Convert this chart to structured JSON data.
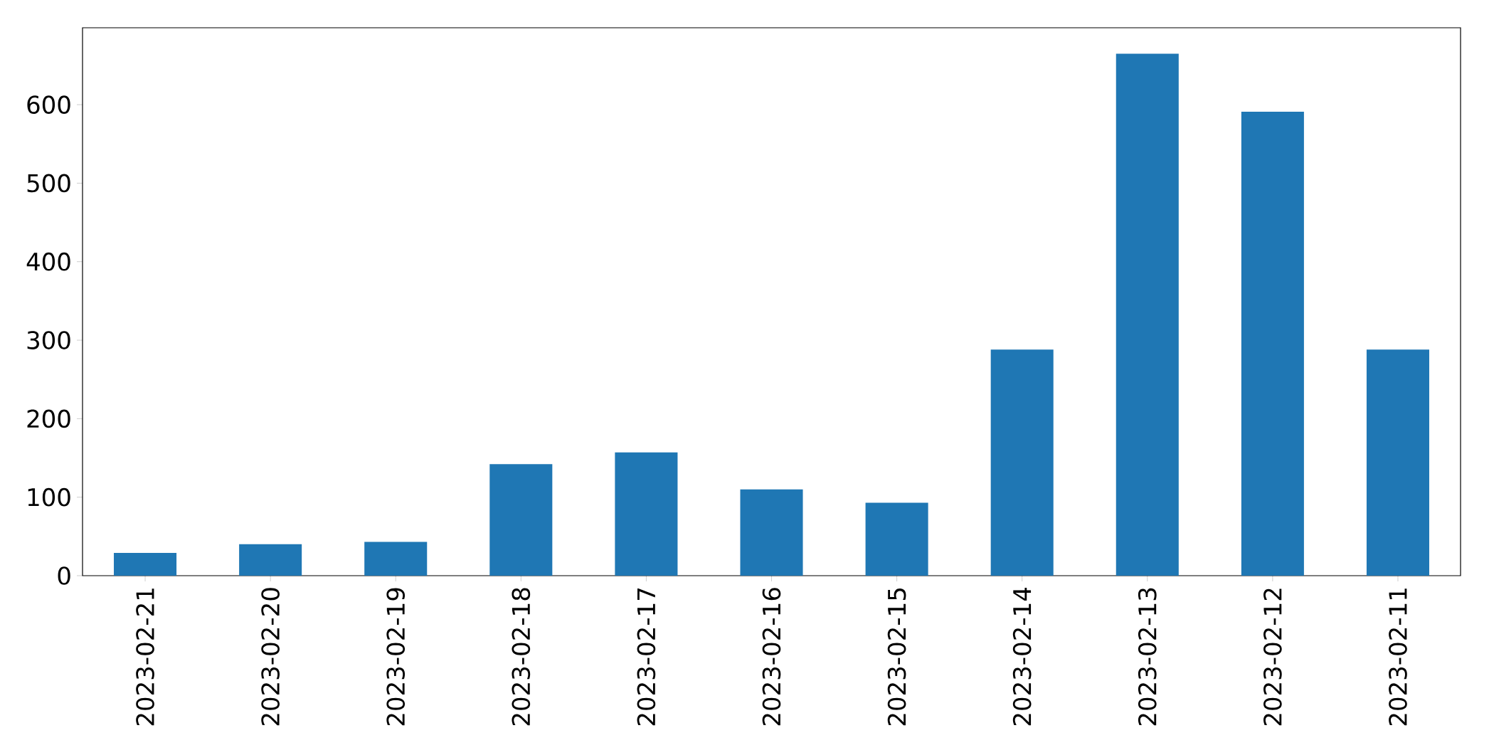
{
  "chart_data": {
    "type": "bar",
    "categories": [
      "2023-02-21",
      "2023-02-20",
      "2023-02-19",
      "2023-02-18",
      "2023-02-17",
      "2023-02-16",
      "2023-02-15",
      "2023-02-14",
      "2023-02-13",
      "2023-02-12",
      "2023-02-11"
    ],
    "values": [
      29,
      40,
      43,
      142,
      157,
      110,
      93,
      288,
      665,
      591,
      288
    ],
    "color": "#1f77b4",
    "ylim": [
      0,
      698
    ],
    "yticks": [
      0,
      100,
      200,
      300,
      400,
      500,
      600
    ],
    "grid": false
  }
}
